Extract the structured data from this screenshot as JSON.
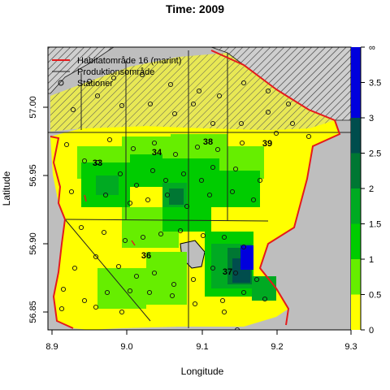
{
  "title": "Time: 2009",
  "x_axis": {
    "label": "Longitude",
    "ticks": [
      "8.9",
      "9.0",
      "9.1",
      "9.2",
      "9.3"
    ]
  },
  "y_axis": {
    "label": "Latitude",
    "ticks": [
      "56.85",
      "56.90",
      "56.95",
      "57.00"
    ]
  },
  "legend": {
    "position": "top-left",
    "items": [
      {
        "label": "Habitatområde 16 (marint)",
        "kind": "line",
        "color": "#e41a1c"
      },
      {
        "label": "Produktionsområde",
        "kind": "line",
        "color": "#222222"
      },
      {
        "label": "Stationer",
        "kind": "circle",
        "color": "#111111"
      }
    ]
  },
  "area_labels": [
    "33",
    "34",
    "38",
    "39",
    "36",
    "37"
  ],
  "colorbar": {
    "ticks": [
      "0",
      "0.5",
      "1",
      "1.5",
      "2",
      "2.5",
      "3",
      "3.5",
      "∞"
    ],
    "bins": [
      {
        "range": "0-0.5",
        "color": "#ffff00"
      },
      {
        "range": "0.5-1",
        "color": "#66ee00"
      },
      {
        "range": "1-1.5",
        "color": "#00cc00"
      },
      {
        "range": "1.5-2",
        "color": "#00aa22"
      },
      {
        "range": "2-2.5",
        "color": "#007733"
      },
      {
        "range": "2.5-3",
        "color": "#004d4d"
      },
      {
        "range": "3-∞",
        "color": "#0000dd"
      }
    ]
  },
  "colors": {
    "land": "#bebebe",
    "hatch_fill": "#e8e855",
    "habitat_line": "#e41a1c",
    "area_line": "#222222"
  }
}
